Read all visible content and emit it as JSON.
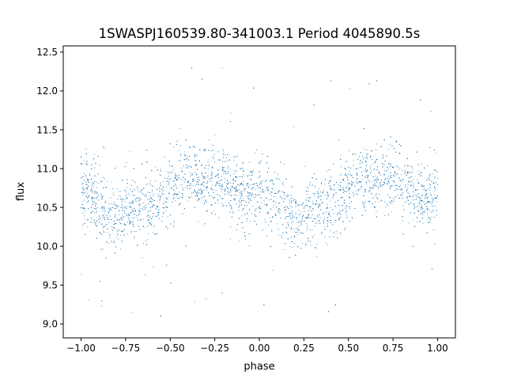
{
  "chart_data": {
    "type": "scatter",
    "title": "1SWASPJ160539.80-341003.1 Period 4045890.5s",
    "xlabel": "phase",
    "ylabel": "flux",
    "xlim": [
      -1.1,
      1.1
    ],
    "ylim": [
      8.82,
      12.58
    ],
    "xticks": [
      -1.0,
      -0.75,
      -0.5,
      -0.25,
      0.0,
      0.25,
      0.5,
      0.75,
      1.0
    ],
    "xtick_labels": [
      "−1.00",
      "−0.75",
      "−0.50",
      "−0.25",
      "0.00",
      "0.25",
      "0.50",
      "0.75",
      "1.00"
    ],
    "yticks": [
      9.0,
      9.5,
      10.0,
      10.5,
      11.0,
      11.5,
      12.0,
      12.5
    ],
    "ytick_labels": [
      "9.0",
      "9.5",
      "10.0",
      "10.5",
      "11.0",
      "11.5",
      "12.0",
      "12.5"
    ],
    "grid": false,
    "marker_color": "#1f77b4",
    "series": [
      {
        "phase_range": [
          -1.0,
          1.0
        ],
        "approx_points": 6000,
        "mean_flux_profile": {
          "phase": [
            0.0,
            0.05,
            0.1,
            0.15,
            0.2,
            0.25,
            0.3,
            0.35,
            0.4,
            0.45,
            0.5,
            0.55,
            0.6,
            0.65,
            0.7,
            0.75,
            0.8,
            0.85,
            0.9,
            0.95,
            1.0
          ],
          "flux": [
            10.75,
            10.7,
            10.55,
            10.4,
            10.35,
            10.45,
            10.5,
            10.5,
            10.55,
            10.65,
            10.75,
            10.9,
            10.95,
            10.85,
            10.8,
            10.9,
            10.85,
            10.75,
            10.65,
            10.6,
            10.75
          ]
        },
        "scatter_sigma": 0.28
      }
    ]
  }
}
